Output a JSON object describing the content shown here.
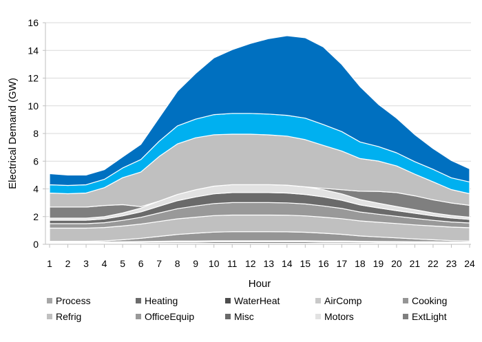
{
  "chart_data": {
    "type": "area",
    "stacked": true,
    "title": "",
    "xlabel": "Hour",
    "ylabel": "Electrical Demand (GW)",
    "ylim": [
      0,
      16
    ],
    "yticks": [
      0,
      2,
      4,
      6,
      8,
      10,
      12,
      14,
      16
    ],
    "grid": true,
    "legend_position": "bottom",
    "x": [
      1,
      2,
      3,
      4,
      5,
      6,
      7,
      8,
      9,
      10,
      11,
      12,
      13,
      14,
      15,
      16,
      17,
      18,
      19,
      20,
      21,
      22,
      23,
      24
    ],
    "series": [
      {
        "name": "Process",
        "color": "#a6a6a6",
        "values": [
          0.05,
          0.05,
          0.05,
          0.05,
          0.05,
          0.05,
          0.05,
          0.05,
          0.05,
          0.05,
          0.05,
          0.05,
          0.05,
          0.05,
          0.05,
          0.05,
          0.05,
          0.05,
          0.05,
          0.05,
          0.05,
          0.05,
          0.05,
          0.05
        ]
      },
      {
        "name": "Heating",
        "color": "#6b6b6b",
        "values": [
          0.03,
          0.03,
          0.03,
          0.03,
          0.03,
          0.03,
          0.03,
          0.03,
          0.03,
          0.03,
          0.03,
          0.03,
          0.03,
          0.03,
          0.03,
          0.03,
          0.03,
          0.03,
          0.03,
          0.03,
          0.03,
          0.03,
          0.03,
          0.03
        ]
      },
      {
        "name": "WaterHeat",
        "color": "#4d4d4d",
        "values": [
          0.05,
          0.05,
          0.05,
          0.05,
          0.06,
          0.07,
          0.08,
          0.09,
          0.09,
          0.1,
          0.1,
          0.1,
          0.1,
          0.1,
          0.1,
          0.09,
          0.09,
          0.08,
          0.07,
          0.07,
          0.06,
          0.06,
          0.05,
          0.05
        ]
      },
      {
        "name": "AirComp",
        "color": "#c8c8c8",
        "values": [
          0.04,
          0.04,
          0.04,
          0.04,
          0.05,
          0.05,
          0.06,
          0.07,
          0.07,
          0.08,
          0.08,
          0.08,
          0.08,
          0.08,
          0.08,
          0.07,
          0.07,
          0.06,
          0.06,
          0.05,
          0.05,
          0.05,
          0.04,
          0.04
        ]
      },
      {
        "name": "Cooking",
        "color": "#959595",
        "values": [
          0.05,
          0.05,
          0.05,
          0.08,
          0.14,
          0.23,
          0.35,
          0.47,
          0.56,
          0.62,
          0.65,
          0.65,
          0.65,
          0.64,
          0.61,
          0.56,
          0.48,
          0.38,
          0.32,
          0.26,
          0.2,
          0.14,
          0.1,
          0.07
        ]
      },
      {
        "name": "Refrig",
        "color": "#c0c0c0",
        "values": [
          0.95,
          0.95,
          0.95,
          0.96,
          0.99,
          1.03,
          1.08,
          1.13,
          1.16,
          1.19,
          1.2,
          1.2,
          1.2,
          1.2,
          1.18,
          1.16,
          1.13,
          1.09,
          1.06,
          1.04,
          1.01,
          0.99,
          0.97,
          0.96
        ]
      },
      {
        "name": "OfficeEquip",
        "color": "#999999",
        "values": [
          0.32,
          0.32,
          0.32,
          0.35,
          0.41,
          0.49,
          0.61,
          0.73,
          0.81,
          0.87,
          0.9,
          0.9,
          0.9,
          0.89,
          0.86,
          0.81,
          0.74,
          0.64,
          0.58,
          0.52,
          0.47,
          0.41,
          0.37,
          0.34
        ]
      },
      {
        "name": "Misc",
        "color": "#6a6a6a",
        "values": [
          0.25,
          0.25,
          0.25,
          0.27,
          0.32,
          0.39,
          0.49,
          0.58,
          0.65,
          0.7,
          0.72,
          0.72,
          0.72,
          0.71,
          0.69,
          0.65,
          0.59,
          0.51,
          0.46,
          0.41,
          0.37,
          0.32,
          0.29,
          0.26
        ]
      },
      {
        "name": "Motors",
        "color": "#e2e2e2",
        "values": [
          0.15,
          0.15,
          0.15,
          0.17,
          0.21,
          0.28,
          0.37,
          0.45,
          0.52,
          0.56,
          0.58,
          0.58,
          0.58,
          0.57,
          0.55,
          0.52,
          0.46,
          0.39,
          0.34,
          0.3,
          0.26,
          0.21,
          0.18,
          0.16
        ]
      },
      {
        "name": "ExtLight",
        "color": "#7f7f7f",
        "values": [
          0.8,
          0.8,
          0.8,
          0.8,
          0.6,
          0.1,
          0,
          0,
          0,
          0,
          0,
          0,
          0,
          0,
          0,
          0.1,
          0.3,
          0.6,
          0.85,
          1.0,
          1.0,
          0.95,
          0.9,
          0.85
        ]
      },
      {
        "color": "#c0c0c0",
        "values": [
          1.01,
          0.96,
          1.01,
          1.29,
          1.95,
          2.5,
          3.22,
          3.65,
          3.75,
          3.71,
          3.64,
          3.64,
          3.59,
          3.54,
          3.41,
          3.1,
          2.8,
          2.36,
          2.19,
          1.93,
          1.57,
          1.3,
          0.97,
          0.84
        ]
      },
      {
        "color": "#00b0f0",
        "values": [
          0.6,
          0.6,
          0.6,
          0.6,
          0.7,
          0.9,
          1.1,
          1.3,
          1.35,
          1.45,
          1.5,
          1.5,
          1.5,
          1.5,
          1.55,
          1.5,
          1.4,
          1.2,
          1.05,
          0.95,
          0.9,
          0.9,
          0.85,
          0.85
        ]
      },
      {
        "color": "#0070c0",
        "values": [
          0.8,
          0.75,
          0.7,
          0.7,
          0.8,
          1.1,
          1.7,
          2.5,
          3.3,
          4.1,
          4.6,
          5.05,
          5.45,
          5.75,
          5.8,
          5.6,
          4.85,
          4.0,
          3.05,
          2.5,
          1.95,
          1.5,
          1.25,
          0.95
        ]
      }
    ],
    "legend": [
      "Process",
      "Heating",
      "WaterHeat",
      "AirComp",
      "Cooking",
      "Refrig",
      "OfficeEquip",
      "Misc",
      "Motors",
      "ExtLight"
    ]
  }
}
